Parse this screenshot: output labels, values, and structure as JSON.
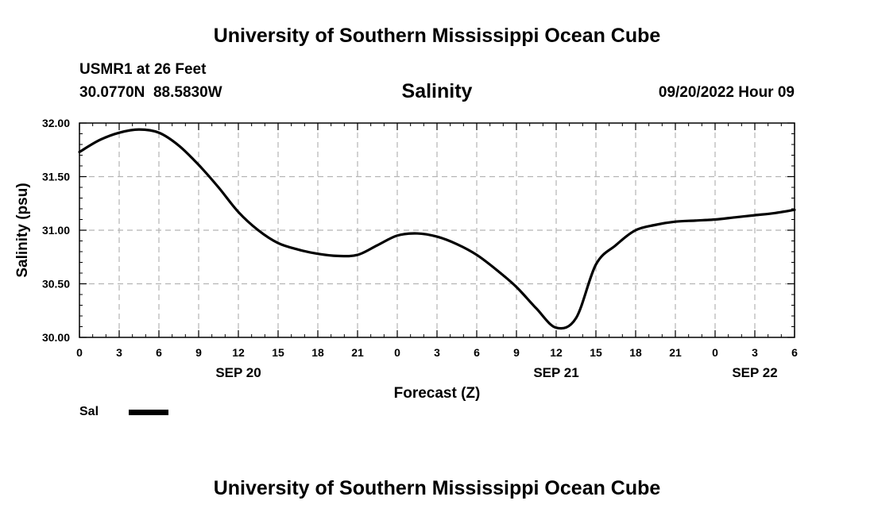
{
  "header": {
    "top_title": "University of Southern Mississippi Ocean Cube",
    "station": "USMR1 at 26 Feet",
    "coords": "30.0770N  88.5830W",
    "datetime": "09/20/2022 Hour 09",
    "bottom_title": "University of Southern Mississippi Ocean Cube"
  },
  "chart_data": {
    "type": "line",
    "title": "Salinity",
    "xlabel": "Forecast (Z)",
    "ylabel": "Salinity (psu)",
    "xlim": [
      0,
      54
    ],
    "ylim": [
      30.0,
      32.0
    ],
    "x_tick_labels": [
      "0",
      "3",
      "6",
      "9",
      "12",
      "15",
      "18",
      "21",
      "0",
      "3",
      "6",
      "9",
      "12",
      "15",
      "18",
      "21",
      "0",
      "3",
      "6"
    ],
    "y_tick_labels": [
      "32.00",
      "31.50",
      "31.00",
      "30.50",
      "30.00"
    ],
    "y_ticks": [
      32.0,
      31.5,
      31.0,
      30.5,
      30.0
    ],
    "date_labels": [
      {
        "label": "SEP 20",
        "hour": 12
      },
      {
        "label": "SEP 21",
        "hour": 36
      },
      {
        "label": "SEP 22",
        "hour": 51
      }
    ],
    "grid": true,
    "legend": {
      "placement": "bottom-left"
    },
    "series": [
      {
        "name": "Sal",
        "color": "#000000",
        "x": [
          0,
          1.5,
          3,
          4.5,
          6,
          7.5,
          9,
          10.5,
          12,
          13.5,
          15,
          16.5,
          18,
          19.5,
          21,
          22.5,
          24,
          25.5,
          27,
          28.5,
          30,
          31.5,
          33,
          34.5,
          36,
          37.5,
          39,
          40.5,
          42,
          43.5,
          45,
          46.5,
          48,
          49.5,
          51,
          52.5,
          54
        ],
        "values": [
          31.73,
          31.84,
          31.91,
          31.94,
          31.91,
          31.79,
          31.61,
          31.4,
          31.17,
          31.0,
          30.88,
          30.82,
          30.78,
          30.76,
          30.77,
          30.86,
          30.95,
          30.97,
          30.94,
          30.87,
          30.77,
          30.63,
          30.47,
          30.27,
          30.09,
          30.18,
          30.68,
          30.86,
          31.0,
          31.05,
          31.08,
          31.09,
          31.1,
          31.12,
          31.14,
          31.16,
          31.19
        ]
      }
    ]
  }
}
